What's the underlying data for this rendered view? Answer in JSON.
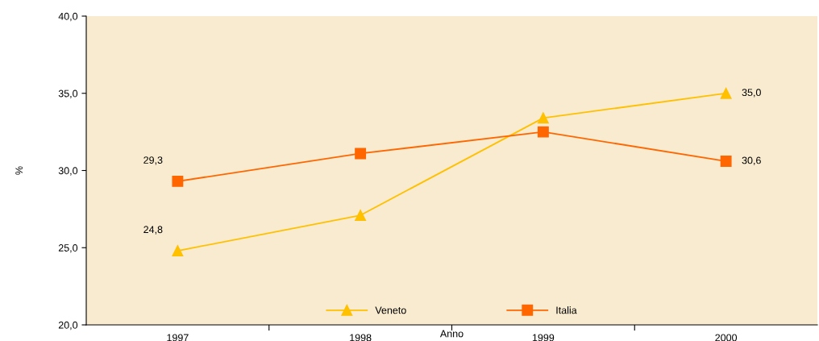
{
  "chart_data": {
    "type": "line",
    "xlabel": "Anno",
    "ylabel": "%",
    "categories": [
      "1997",
      "1998",
      "1999",
      "2000"
    ],
    "series": [
      {
        "name": "Veneto",
        "color": "#ffc000",
        "marker": "triangle",
        "values": [
          24.8,
          27.1,
          33.4,
          35.0
        ],
        "value_labels": [
          "24,8",
          null,
          null,
          "35,0"
        ]
      },
      {
        "name": "Italia",
        "color": "#ff6600",
        "marker": "square",
        "values": [
          29.3,
          31.1,
          32.5,
          30.6
        ],
        "value_labels": [
          "29,3",
          null,
          null,
          "30,6"
        ]
      }
    ],
    "ylim": [
      20,
      40
    ],
    "yticks": [
      {
        "value": 20,
        "label": "20,0"
      },
      {
        "value": 25,
        "label": "25,0"
      },
      {
        "value": 30,
        "label": "30,0"
      },
      {
        "value": 35,
        "label": "35,0"
      },
      {
        "value": 40,
        "label": "40,0"
      }
    ],
    "grid": false,
    "legend": "bottom",
    "line_style": "solid"
  }
}
